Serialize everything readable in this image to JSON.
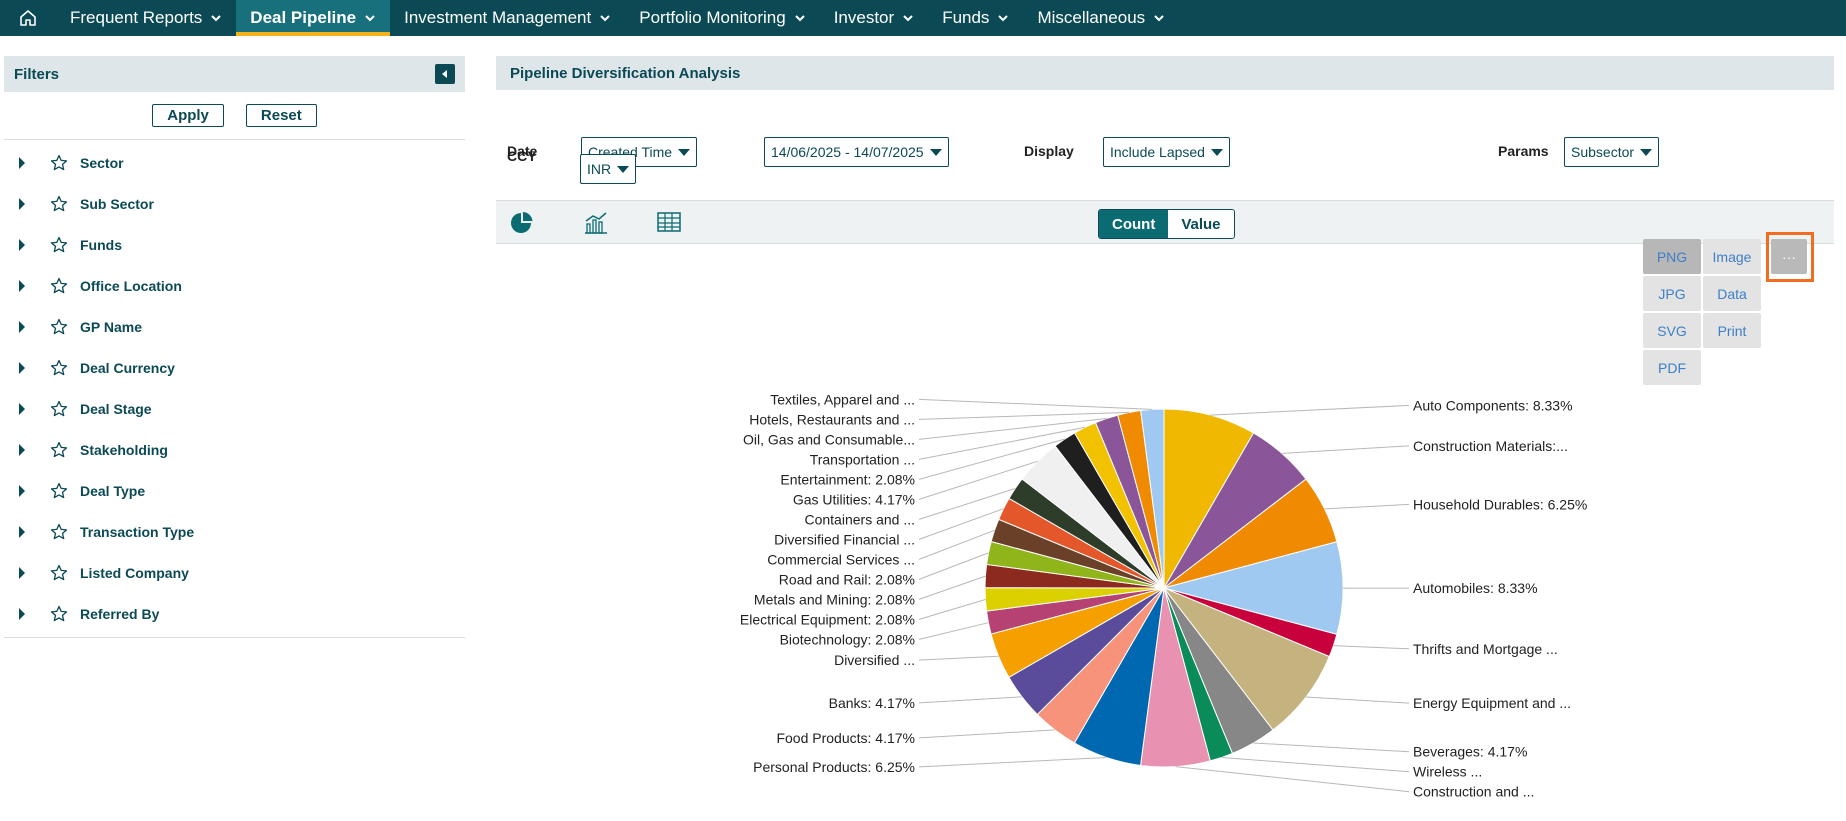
{
  "nav": {
    "items": [
      {
        "label": "Frequent Reports",
        "active": false
      },
      {
        "label": "Deal Pipeline",
        "active": true
      },
      {
        "label": "Investment Management",
        "active": false
      },
      {
        "label": "Portfolio Monitoring",
        "active": false
      },
      {
        "label": "Investor",
        "active": false
      },
      {
        "label": "Funds",
        "active": false
      },
      {
        "label": "Miscellaneous",
        "active": false
      }
    ]
  },
  "filters": {
    "title": "Filters",
    "apply_label": "Apply",
    "reset_label": "Reset",
    "items": [
      "Sector",
      "Sub Sector",
      "Funds",
      "Office Location",
      "GP Name",
      "Deal Currency",
      "Deal Stage",
      "Stakeholding",
      "Deal Type",
      "Transaction Type",
      "Listed Company",
      "Referred By"
    ]
  },
  "main": {
    "title": "Pipeline Diversification Analysis",
    "date_label": "Date",
    "date_type": "Created Time",
    "date_range": "14/06/2025 - 14/07/2025",
    "display_label": "Display",
    "display_value": "Include Lapsed",
    "params_label": "Params",
    "params_value": "Subsector",
    "ccy_label": "CCY",
    "ccy_value": "INR",
    "count_label": "Count",
    "value_label": "Value"
  },
  "export": {
    "png": "PNG",
    "image": "Image",
    "more": "···",
    "jpg": "JPG",
    "data": "Data",
    "svg": "SVG",
    "print": "Print",
    "pdf": "PDF"
  },
  "colors": {
    "nav_bg": "#0b4a55",
    "accent": "#f3b21b",
    "highlight": "#f36d21"
  },
  "chart_data": {
    "type": "pie",
    "slices": [
      {
        "label": "Auto Components: 8.33%",
        "value": 8.33,
        "color": "#f0b800"
      },
      {
        "label": "Construction Materials:...",
        "value": 6.25,
        "color": "#8a5599"
      },
      {
        "label": "Household Durables: 6.25%",
        "value": 6.25,
        "color": "#f08a00"
      },
      {
        "label": "Automobiles: 8.33%",
        "value": 8.33,
        "color": "#9fc9f0"
      },
      {
        "label": "Thrifts and Mortgage ...",
        "value": 2.08,
        "color": "#c8003c"
      },
      {
        "label": "Energy Equipment and ...",
        "value": 8.33,
        "color": "#c4b37e"
      },
      {
        "label": "Beverages: 4.17%",
        "value": 4.17,
        "color": "#878787"
      },
      {
        "label": "Wireless ...",
        "value": 2.08,
        "color": "#0a8c5a"
      },
      {
        "label": "Construction and ...",
        "value": 6.25,
        "color": "#e891b0"
      },
      {
        "label": "Personal Products: 6.25%",
        "value": 6.25,
        "color": "#0068b0"
      },
      {
        "label": "Food Products: 4.17%",
        "value": 4.17,
        "color": "#f7937a"
      },
      {
        "label": "Banks: 4.17%",
        "value": 4.17,
        "color": "#5b4b9b"
      },
      {
        "label": "Diversified ...",
        "value": 4.17,
        "color": "#f5a000"
      },
      {
        "label": "Biotechnology: 2.08%",
        "value": 2.08,
        "color": "#b54272"
      },
      {
        "label": "Electrical Equipment: 2.08%",
        "value": 2.08,
        "color": "#dcd100"
      },
      {
        "label": "Metals and Mining: 2.08%",
        "value": 2.08,
        "color": "#8c2a1e"
      },
      {
        "label": "Road and Rail: 2.08%",
        "value": 2.08,
        "color": "#8fb51a"
      },
      {
        "label": "Commercial Services ...",
        "value": 2.08,
        "color": "#6a4128"
      },
      {
        "label": "Diversified Financial ...",
        "value": 2.08,
        "color": "#e3572a"
      },
      {
        "label": "Containers and ...",
        "value": 2.08,
        "color": "#2e3d2a"
      },
      {
        "label": "Gas Utilities: 4.17%",
        "value": 4.17,
        "color": "#f0f0f0"
      },
      {
        "label": "Entertainment: 2.08%",
        "value": 2.08,
        "color": "#1f1f1f"
      },
      {
        "label": "Transportation ...",
        "value": 2.08,
        "color": "#f2c200"
      },
      {
        "label": "Oil, Gas and Consumable...",
        "value": 2.08,
        "color": "#8a5599"
      },
      {
        "label": "Hotels, Restaurants and ...",
        "value": 2.08,
        "color": "#f08a00"
      },
      {
        "label": "Textiles, Apparel and ...",
        "value": 2.08,
        "color": "#9fc9f0"
      }
    ]
  }
}
